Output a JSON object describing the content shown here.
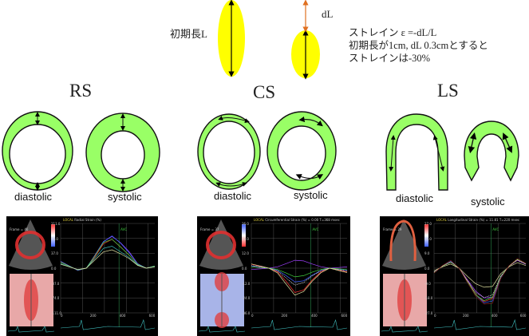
{
  "top": {
    "initial_length_label": "初期長L",
    "dl_label": "dL",
    "explanation": [
      "ストレイン ε  =-dL/L",
      "初期長が1cm, dL 0.3cmとすると",
      "ストレインは-30%"
    ],
    "ellipse_color": "#ffff00",
    "dl_arrow_color": "#e07020"
  },
  "sections": [
    {
      "title": "RS",
      "diastolic": "diastolic",
      "systolic": "systolic"
    },
    {
      "title": "CS",
      "diastolic": "diastolic",
      "systolic": "systolic"
    },
    {
      "title": "LS",
      "diastolic": "diastolic",
      "systolic": "systolic"
    }
  ],
  "wall_color": "#99ff66",
  "panels": [
    {
      "local": "LOCAL",
      "title": "Radial Strain (%)",
      "avc": "AVC",
      "frame": "Frame = 46",
      "yticks": [
        "111.0",
        "74.0",
        "37.0",
        "0.0",
        "-37.0",
        "-74.0",
        "-111.0"
      ],
      "xticks": [
        "0",
        "200",
        "400",
        "600"
      ]
    },
    {
      "local": "LOCAL",
      "title": "Circumferential Strain (%)  = 0.00   T=368 msec",
      "avc": "AVC",
      "frame": "Frame = 37",
      "yticks": [
        "36.0",
        "24.0",
        "12.0",
        "0.0",
        "-12.0",
        "-24.0",
        "-36.0"
      ],
      "xticks": [
        "0",
        "200",
        "400",
        "600"
      ]
    },
    {
      "local": "LOCAL",
      "title": "Longitudinal Strain (%) = 11.81   T=220 msec",
      "avc": "AVC",
      "frame": "Frame = 29",
      "yticks": [
        "27.0",
        "18.0",
        "9.0",
        "0.0",
        "-9.0",
        "-18.0",
        "-27.0"
      ],
      "xticks": [
        "0",
        "200",
        "400",
        "600"
      ]
    }
  ]
}
